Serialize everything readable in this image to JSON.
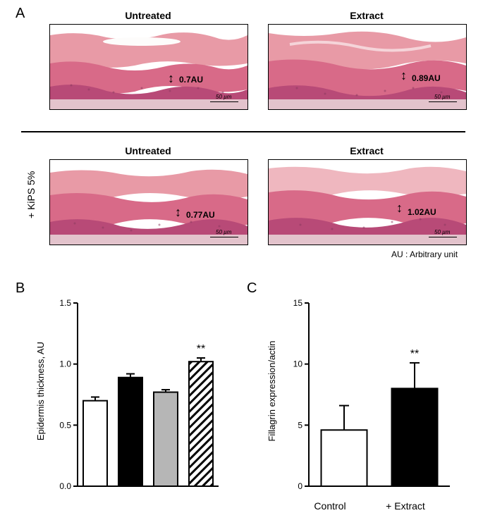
{
  "panelA": {
    "label": "A",
    "columns": {
      "untreated": "Untreated",
      "extract": "Extract"
    },
    "row2_label": "+ KiPS 5%",
    "au_note": "AU : Arbitrary unit",
    "images": {
      "top_left": {
        "au_text": "0.7AU",
        "scale_text": "50 µm"
      },
      "top_right": {
        "au_text": "0.89AU",
        "scale_text": "50 µm"
      },
      "bot_left": {
        "au_text": "0.77AU",
        "scale_text": "50 µm"
      },
      "bot_right": {
        "au_text": "1.02AU",
        "scale_text": "50 µm"
      }
    },
    "histo_colors": {
      "top_pink": "#e89aa6",
      "mid_pink": "#d86a88",
      "deep_pink": "#b84a77",
      "base_pink": "#e3c3cc",
      "white_tear": "#fdfcfb"
    }
  },
  "panelB": {
    "label": "B",
    "ylabel": "Epidermis thickness, AU",
    "type": "bar",
    "ylim": [
      0.0,
      1.5
    ],
    "ytick_step": 0.5,
    "yticks": [
      "0.0",
      "0.5",
      "1.0",
      "1.5"
    ],
    "bars": [
      {
        "value": 0.7,
        "err": 0.03,
        "fill": "#ffffff",
        "stroke": "#000000",
        "pattern": "none"
      },
      {
        "value": 0.89,
        "err": 0.03,
        "fill": "#000000",
        "stroke": "#000000",
        "pattern": "none"
      },
      {
        "value": 0.77,
        "err": 0.02,
        "fill": "#b6b6b6",
        "stroke": "#000000",
        "pattern": "none"
      },
      {
        "value": 1.02,
        "err": 0.03,
        "fill": "#ffffff",
        "stroke": "#000000",
        "pattern": "hatch"
      }
    ],
    "sig_marker": "**",
    "sig_bar_index": 3,
    "axis_color": "#000000",
    "tick_fontsize": 12,
    "label_fontsize": 13
  },
  "panelC": {
    "label": "C",
    "ylabel": "Fillagrin expression/actin",
    "type": "bar",
    "ylim": [
      0,
      15
    ],
    "ytick_step": 5,
    "yticks": [
      "0",
      "5",
      "10",
      "15"
    ],
    "bars": [
      {
        "label": "Control",
        "value": 4.6,
        "err": 2.0,
        "fill": "#ffffff",
        "stroke": "#000000"
      },
      {
        "label": "+ Extract",
        "value": 8.0,
        "err": 2.1,
        "fill": "#000000",
        "stroke": "#000000"
      }
    ],
    "sig_marker": "**",
    "sig_bar_index": 1,
    "axis_color": "#000000",
    "tick_fontsize": 12,
    "label_fontsize": 13,
    "xlabel_fontsize": 14
  }
}
